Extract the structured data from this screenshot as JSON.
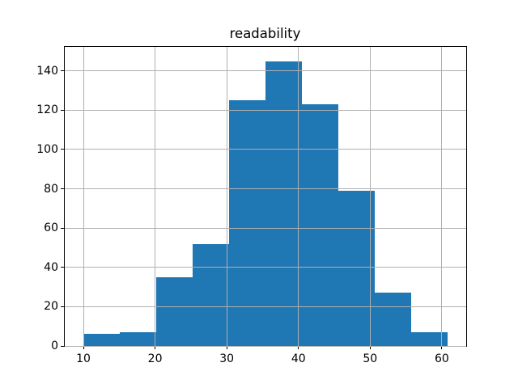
{
  "chart_data": {
    "type": "bar",
    "subtype": "histogram",
    "title": "readability",
    "xlabel": "",
    "ylabel": "",
    "bin_edges": [
      10.0,
      15.08,
      20.16,
      25.24,
      30.32,
      35.4,
      40.48,
      45.56,
      50.64,
      55.72,
      60.8
    ],
    "counts": [
      6,
      7,
      35,
      52,
      125,
      145,
      123,
      79,
      27,
      7
    ],
    "x_ticks": [
      10,
      20,
      30,
      40,
      50,
      60
    ],
    "y_ticks": [
      0,
      20,
      40,
      60,
      80,
      100,
      120,
      140
    ],
    "xlim": [
      7.4,
      63.4
    ],
    "ylim": [
      0,
      152.25
    ],
    "grid": true,
    "grid_over_bars": true,
    "legend": null,
    "colors": {
      "bar": "#1f77b4",
      "grid": "#b0b0b0",
      "spine": "#000000",
      "background": "#ffffff",
      "text": "#000000"
    }
  }
}
